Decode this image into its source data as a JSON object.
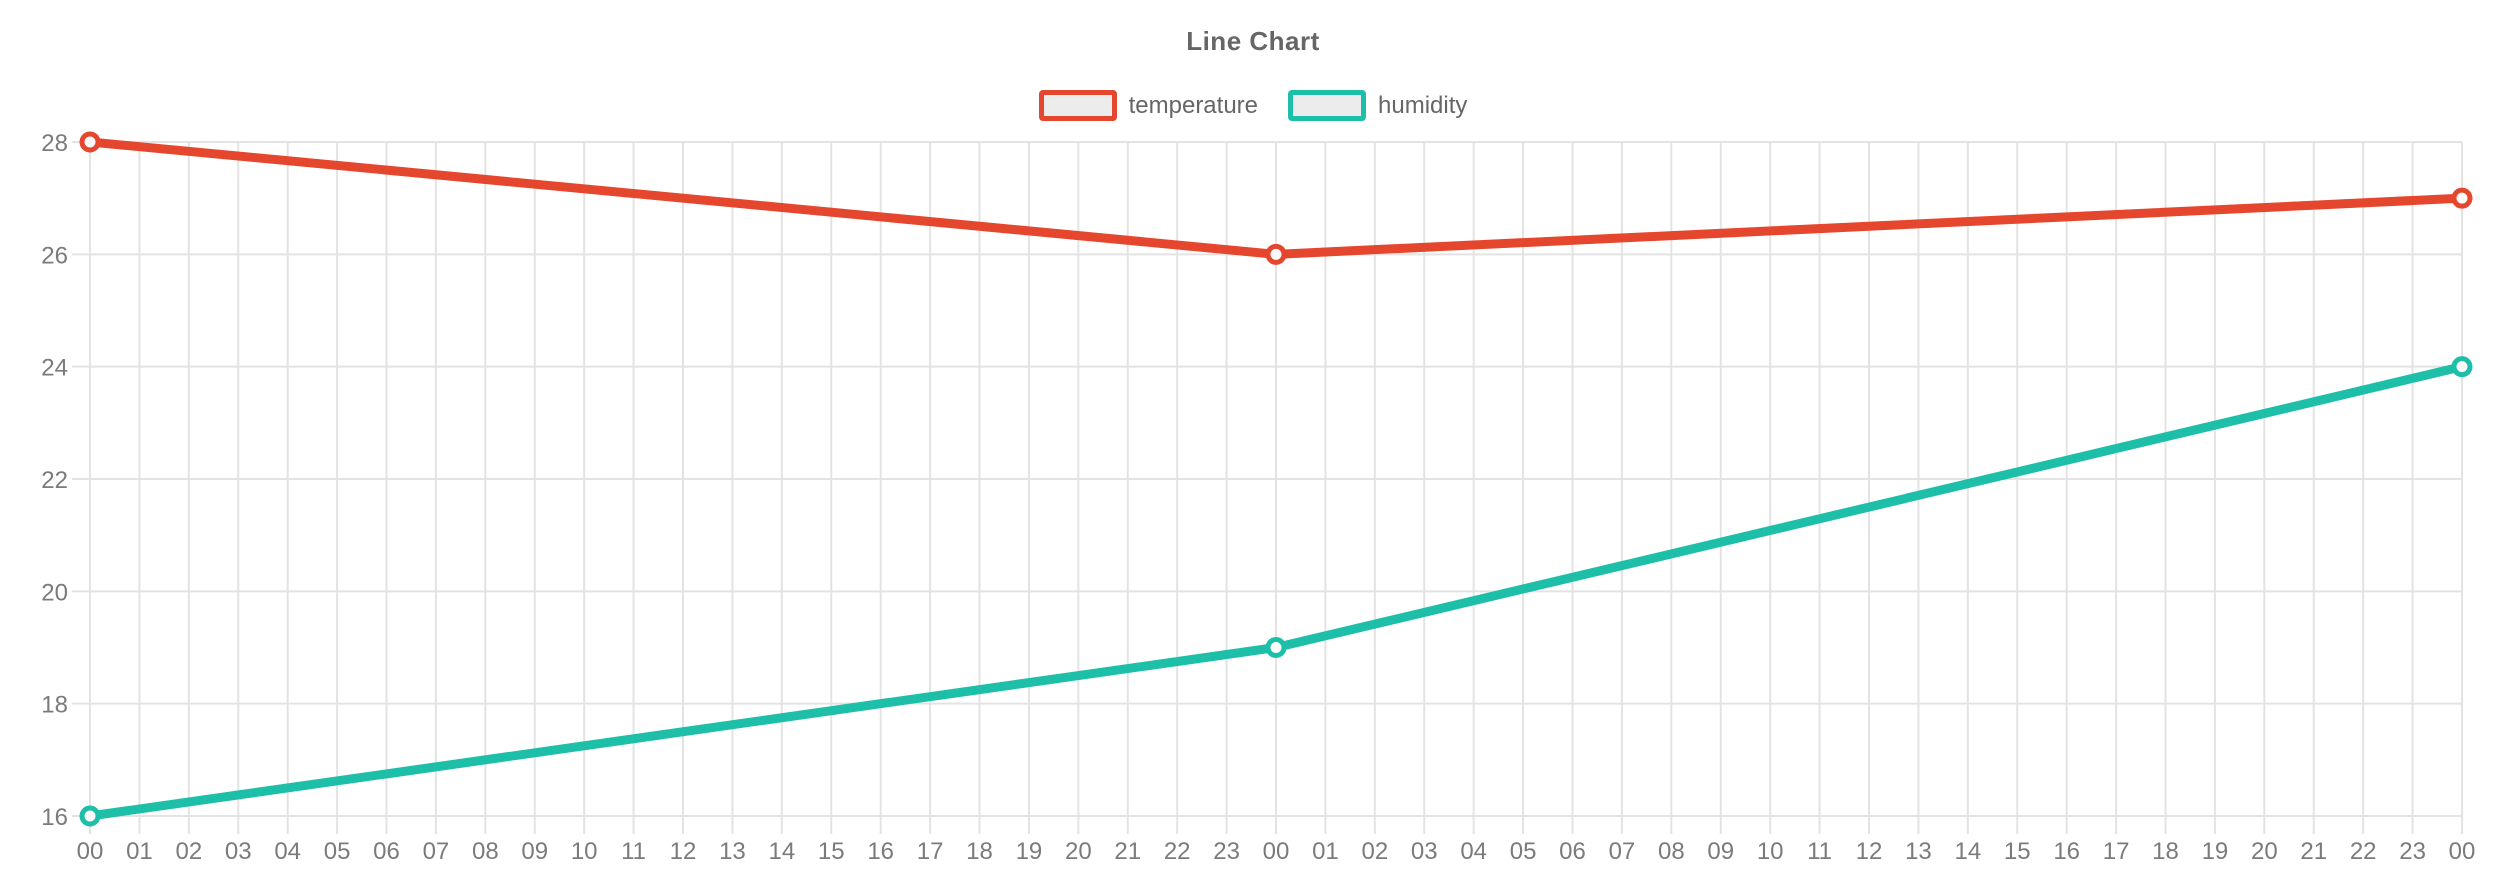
{
  "chart_data": {
    "type": "line",
    "title": "Line Chart",
    "x_labels": [
      "00",
      "01",
      "02",
      "03",
      "04",
      "05",
      "06",
      "07",
      "08",
      "09",
      "10",
      "11",
      "12",
      "13",
      "14",
      "15",
      "16",
      "17",
      "18",
      "19",
      "20",
      "21",
      "22",
      "23",
      "00",
      "01",
      "02",
      "03",
      "04",
      "05",
      "06",
      "07",
      "08",
      "09",
      "10",
      "11",
      "12",
      "13",
      "14",
      "15",
      "16",
      "17",
      "18",
      "19",
      "20",
      "21",
      "22",
      "23",
      "00"
    ],
    "y_ticks": [
      16,
      18,
      20,
      22,
      24,
      26,
      28
    ],
    "ylim": [
      16,
      28
    ],
    "grid": true,
    "legend_position": "top",
    "series": [
      {
        "name": "temperature",
        "color": "#e5472e",
        "points": [
          {
            "x_index": 0,
            "x_label": "00",
            "value": 28
          },
          {
            "x_index": 24,
            "x_label": "00",
            "value": 26
          },
          {
            "x_index": 48,
            "x_label": "00",
            "value": 27
          }
        ]
      },
      {
        "name": "humidity",
        "color": "#1ebfa8",
        "points": [
          {
            "x_index": 0,
            "x_label": "00",
            "value": 16
          },
          {
            "x_index": 24,
            "x_label": "00",
            "value": 19
          },
          {
            "x_index": 48,
            "x_label": "00",
            "value": 24
          }
        ]
      }
    ]
  },
  "style": {
    "background": "#ffffff",
    "grid_color": "#e3e3e3",
    "tick_text_color": "#7b7b7b",
    "title_color": "#666666",
    "legend_text_color": "#666666",
    "legend_swatch_fill": "#ececec",
    "marker_fill": "#fafafa"
  }
}
